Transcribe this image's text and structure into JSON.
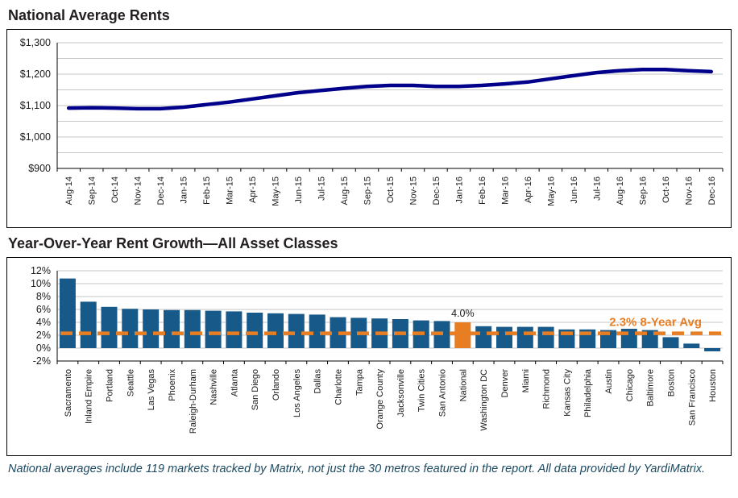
{
  "page": {
    "footnote": "National averages include 119 markets tracked by Matrix, not just the 30 metros featured in the report. All data provided by YardiMatrix."
  },
  "colors": {
    "line_navy": "#00008B",
    "bar_blue": "#175989",
    "accent_orange": "#E87E23",
    "grid_gray": "#C6C6C6",
    "axis_black": "#000000",
    "title_color": "#231F20",
    "footnote_color": "#1C4A61"
  },
  "chart_data": [
    {
      "type": "line",
      "title": "National Average Rents",
      "x": [
        "Aug-14",
        "Sep-14",
        "Oct-14",
        "Nov-14",
        "Dec-14",
        "Jan-15",
        "Feb-15",
        "Mar-15",
        "Apr-15",
        "May-15",
        "Jun-15",
        "Jul-15",
        "Aug-15",
        "Sep-15",
        "Oct-15",
        "Nov-15",
        "Dec-15",
        "Jan-16",
        "Feb-16",
        "Mar-16",
        "Apr-16",
        "May-16",
        "Jun-16",
        "Jul-16",
        "Aug-16",
        "Sep-16",
        "Oct-16",
        "Nov-16",
        "Dec-16"
      ],
      "values": [
        1092,
        1093,
        1092,
        1090,
        1090,
        1095,
        1103,
        1111,
        1121,
        1131,
        1141,
        1148,
        1155,
        1161,
        1164,
        1164,
        1161,
        1161,
        1164,
        1169,
        1175,
        1185,
        1195,
        1205,
        1211,
        1215,
        1215,
        1211,
        1208
      ],
      "ylim": [
        900,
        1300
      ],
      "yticks": [
        900,
        1000,
        1100,
        1200,
        1300
      ],
      "ytick_labels": [
        "$900",
        "$1,000",
        "$1,100",
        "$1,200",
        "$1,300"
      ],
      "minor_grid_step": 50,
      "grid": true,
      "legend": "none"
    },
    {
      "type": "bar",
      "title": "Year-Over-Year Rent Growth—All Asset Classes",
      "categories": [
        "Sacramento",
        "Inland Empire",
        "Portland",
        "Seattle",
        "Las Vegas",
        "Phoenix",
        "Raleigh-Durham",
        "Nashville",
        "Atlanta",
        "San Diego",
        "Orlando",
        "Los Angeles",
        "Dallas",
        "Charlotte",
        "Tampa",
        "Orange County",
        "Jacksonville",
        "Twin Cities",
        "San Antonio",
        "National",
        "Washington DC",
        "Denver",
        "Miami",
        "Richmond",
        "Kansas City",
        "Philadelphia",
        "Austin",
        "Chicago",
        "Baltimore",
        "Boston",
        "San Francisco",
        "Houston"
      ],
      "values": [
        10.8,
        7.2,
        6.4,
        6.1,
        6.0,
        5.9,
        5.9,
        5.8,
        5.7,
        5.5,
        5.4,
        5.3,
        5.2,
        4.8,
        4.7,
        4.6,
        4.5,
        4.3,
        4.2,
        4.0,
        3.4,
        3.3,
        3.3,
        3.3,
        2.9,
        2.9,
        2.8,
        3.0,
        2.8,
        1.7,
        0.7,
        -0.5
      ],
      "highlight_category": "National",
      "highlight_label": "4.0%",
      "avg_line": {
        "value": 2.3,
        "label": "2.3% 8-Year Avg"
      },
      "ylim": [
        -2,
        12
      ],
      "yticks": [
        12,
        10,
        8,
        6,
        4,
        2,
        0,
        -2
      ],
      "ytick_labels": [
        "12%",
        "10%",
        "8%",
        "6%",
        "4%",
        "2%",
        "0%",
        "-2%"
      ],
      "grid": true,
      "legend": "none"
    }
  ]
}
